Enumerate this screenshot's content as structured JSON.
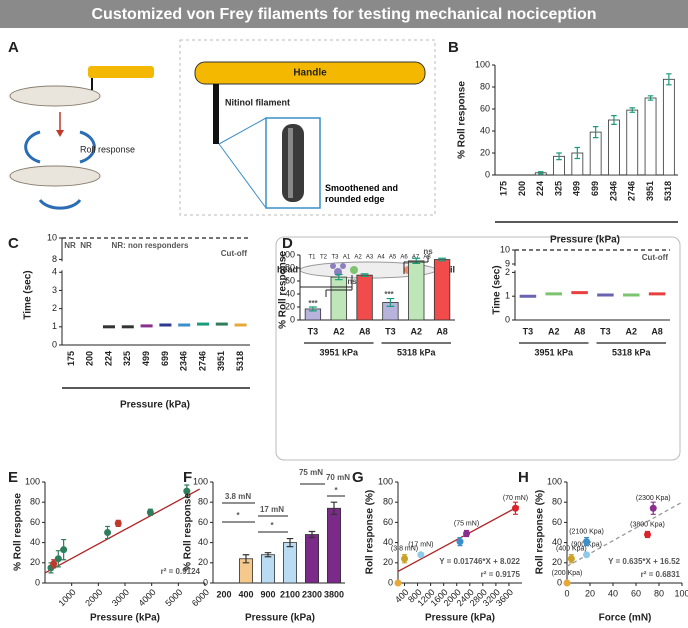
{
  "header": {
    "title": "Customized von Frey filaments for testing mechanical nociception"
  },
  "panel_a": {
    "letter": "A",
    "roll": "Roll response",
    "handle": "Handle",
    "nitinol": "Nitinol filament",
    "edge": "Smoothened and rounded edge"
  },
  "panel_d_larva": {
    "head": "head",
    "tail": "tail",
    "segments": [
      "T1",
      "T2",
      "T3",
      "A1",
      "A2",
      "A3",
      "A4",
      "A5",
      "A6",
      "A7",
      "A8"
    ]
  },
  "chart_data": [
    {
      "type": "bar",
      "letter": "B",
      "ylabel": "% Roll response",
      "xlabel": "Pressure (kPa)",
      "categories": [
        "175",
        "200",
        "224",
        "325",
        "499",
        "699",
        "2346",
        "2746",
        "3951",
        "5318"
      ],
      "values": [
        0,
        0,
        2,
        17,
        20,
        39,
        50,
        59,
        70,
        87
      ],
      "errors": [
        0,
        0,
        1,
        3,
        5,
        5,
        4,
        2,
        2,
        5
      ],
      "color": "#ffffff",
      "error_color": "#1a9c7a",
      "ylim": [
        0,
        100
      ],
      "yticks": [
        0,
        20,
        40,
        60,
        80,
        100
      ]
    },
    {
      "type": "strip",
      "letter": "C",
      "ylabel": "Time (sec)",
      "xlabel": "Pressure (kPa)",
      "categories": [
        "175",
        "200",
        "224",
        "325",
        "499",
        "699",
        "2346",
        "2746",
        "3951",
        "5318"
      ],
      "values": [
        null,
        null,
        1,
        1,
        1.05,
        1.1,
        1.1,
        1.15,
        1.15,
        1.1
      ],
      "colors": [
        "#999999",
        "#999999",
        "#333333",
        "#333333",
        "#8b2f8f",
        "#2b3990",
        "#3b8fc9",
        "#1a9c7a",
        "#2e7d5b",
        "#e8a838"
      ],
      "ylim": [
        0,
        10
      ],
      "ybreak": [
        4,
        8
      ],
      "yticks": [
        0,
        1,
        2,
        3,
        4,
        8,
        10
      ],
      "cutoff": 10,
      "annotations": [
        "NR",
        "NR",
        "NR: non responders",
        "Cut-off"
      ]
    },
    {
      "type": "bar",
      "letter": "D",
      "ylabel": "% Roll response",
      "categories": [
        "T3",
        "A2",
        "A8",
        "T3",
        "A2",
        "A8"
      ],
      "groups": [
        "3951 kPa",
        "5318 kPa"
      ],
      "values": [
        17,
        66,
        69,
        27,
        91,
        93
      ],
      "errors": [
        3,
        4,
        2,
        6,
        4,
        2
      ],
      "colors": [
        "#b6b3dc",
        "#bfe6b8",
        "#f24b4b",
        "#b6b3dc",
        "#bfe6b8",
        "#f24b4b"
      ],
      "error_color": "#1a9c7a",
      "ylim": [
        0,
        100
      ],
      "yticks": [
        0,
        20,
        40,
        60,
        80,
        100
      ],
      "annotations": [
        "***",
        "***",
        "ns",
        "ns"
      ]
    },
    {
      "type": "strip",
      "ylabel": "Time (sec)",
      "categories": [
        "T3",
        "A2",
        "A8",
        "T3",
        "A2",
        "A8"
      ],
      "groups": [
        "3951 kPa",
        "5318 kPa"
      ],
      "values": [
        1,
        1.1,
        1.15,
        1.05,
        1.05,
        1.1
      ],
      "colors": [
        "#6a63b0",
        "#7cc46f",
        "#e8403f",
        "#6a63b0",
        "#7cc46f",
        "#e8403f"
      ],
      "ylim": [
        0,
        10
      ],
      "ybreak": [
        2,
        9
      ],
      "yticks": [
        0,
        1,
        2,
        9,
        10
      ],
      "cutoff": 10,
      "annotations": [
        "Cut-off"
      ]
    },
    {
      "type": "scatter",
      "letter": "E",
      "ylabel": "% Roll response",
      "xlabel": "Pressure (kPa)",
      "x": [
        224,
        325,
        499,
        699,
        2346,
        2746,
        3951,
        5318
      ],
      "values": [
        15,
        19,
        24,
        33,
        50,
        59,
        70,
        91
      ],
      "errors": [
        5,
        4,
        8,
        10,
        6,
        3,
        3,
        6
      ],
      "colors": [
        "#2e7d5b",
        "#c0392b",
        "#2e7d5b",
        "#2e7d5b",
        "#2e7d5b",
        "#c0392b",
        "#2e7d5b",
        "#2e7d5b"
      ],
      "fit": {
        "x": [
          0,
          5800
        ],
        "y": [
          10,
          93
        ]
      },
      "fit_color": "#b22222",
      "xlim": [
        0,
        6000
      ],
      "xticks": [
        1000,
        2000,
        3000,
        4000,
        5000,
        6000
      ],
      "ylim": [
        0,
        100
      ],
      "yticks": [
        0,
        20,
        40,
        60,
        80,
        100
      ],
      "annotations": [
        "r² = 0.9124"
      ]
    },
    {
      "type": "bar",
      "letter": "F",
      "ylabel": "% Roll response",
      "xlabel": "Pressure (kPa)",
      "categories": [
        "200",
        "400",
        "900",
        "2100",
        "2300",
        "3800"
      ],
      "values": [
        0,
        24,
        28,
        40,
        48,
        74
      ],
      "errors": [
        0,
        4,
        2,
        4,
        3,
        6
      ],
      "colors": [
        "#f5c98c",
        "#f5c98c",
        "#b9dcf2",
        "#b9dcf2",
        "#7b2a8a",
        "#7b2a8a"
      ],
      "ylim": [
        0,
        100
      ],
      "yticks": [
        0,
        20,
        40,
        60,
        80,
        100
      ],
      "annotations": [
        "3.8 mN",
        "17 mN",
        "75 mN",
        "70 mN",
        "*",
        "*",
        "*"
      ]
    },
    {
      "type": "scatter",
      "letter": "G",
      "ylabel": "Roll response (%)",
      "xlabel": "Pressure (kPa)",
      "x": [
        200,
        400,
        900,
        2100,
        2300,
        3800
      ],
      "values": [
        0,
        24,
        28,
        41,
        49,
        74
      ],
      "errors": [
        0,
        4,
        2,
        4,
        3,
        6
      ],
      "colors": [
        "#e8a838",
        "#c9a227",
        "#8fcbe8",
        "#3b8fc9",
        "#8b2f8f",
        "#d9242b"
      ],
      "point_labels": [
        null,
        "(3.8 mN)",
        "(17 mN)",
        null,
        "(75 mN)",
        "(70 mN)"
      ],
      "fit": {
        "x": [
          200,
          3900
        ],
        "y": [
          11.5,
          76
        ]
      },
      "fit_color": "#b22222",
      "xlim": [
        200,
        4000
      ],
      "xticks": [
        400,
        800,
        1200,
        1600,
        2000,
        2400,
        2800,
        3200,
        3600
      ],
      "ylim": [
        0,
        100
      ],
      "yticks": [
        0,
        20,
        40,
        60,
        80,
        100
      ],
      "annotations": [
        "Y = 0.01746*X + 8.022",
        "r² = 0.9175"
      ]
    },
    {
      "type": "scatter",
      "letter": "H",
      "ylabel": "Roll response (%)",
      "xlabel": "Force (mN)",
      "x": [
        0,
        3.8,
        17,
        17,
        75,
        70
      ],
      "values": [
        0,
        24,
        28,
        41,
        74,
        48
      ],
      "errors": [
        0,
        4,
        2,
        4,
        6,
        3
      ],
      "colors": [
        "#e8a838",
        "#c9a227",
        "#8fcbe8",
        "#3b8fc9",
        "#8b2f8f",
        "#d9242b"
      ],
      "point_labels": [
        "(200 Kpa)",
        "(400 Kpa)",
        "(900 Kpa)",
        "(2100 Kpa)",
        "(2300 Kpa)",
        "(3800 Kpa)"
      ],
      "fit": {
        "x": [
          0,
          100
        ],
        "y": [
          16.52,
          80
        ]
      },
      "fit_color": "#999999",
      "fit_dash": true,
      "xlim": [
        0,
        100
      ],
      "xticks": [
        0,
        20,
        40,
        60,
        80,
        100
      ],
      "ylim": [
        0,
        100
      ],
      "yticks": [
        0,
        20,
        40,
        60,
        80,
        100
      ],
      "annotations": [
        "Y = 0.635*X + 16.52",
        "r² = 0.6831"
      ]
    }
  ]
}
